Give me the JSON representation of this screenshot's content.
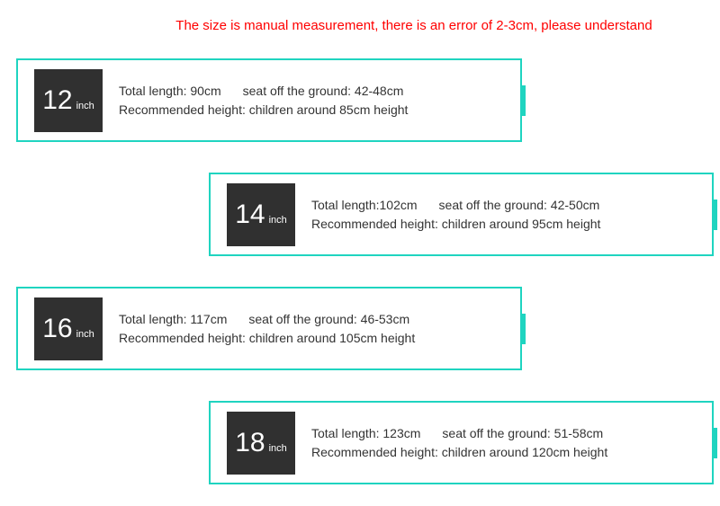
{
  "colors": {
    "disclaimer_text": "#ff0000",
    "card_border": "#1fd4c0",
    "accent_tab": "#1fd4c0",
    "badge_bg": "#303030",
    "badge_text": "#ffffff",
    "info_text": "#333333",
    "background": "#ffffff"
  },
  "disclaimer": "The size is manual measurement, there is an error of 2-3cm, please understand",
  "sizes": [
    {
      "number": "12",
      "unit": "inch",
      "align": "left",
      "total_length": "Total length: 90cm",
      "seat_off_ground": "seat off the ground: 42-48cm",
      "recommended_height": "Recommended height: children around 85cm height"
    },
    {
      "number": "14",
      "unit": "inch",
      "align": "right",
      "total_length": "Total length:102cm",
      "seat_off_ground": "seat off the ground: 42-50cm",
      "recommended_height": "Recommended height: children around 95cm height"
    },
    {
      "number": "16",
      "unit": "inch",
      "align": "left",
      "total_length": "Total length: 117cm",
      "seat_off_ground": "seat off the ground: 46-53cm",
      "recommended_height": "Recommended height: children around 105cm height"
    },
    {
      "number": "18",
      "unit": "inch",
      "align": "right",
      "total_length": "Total length: 123cm",
      "seat_off_ground": "seat off the ground: 51-58cm",
      "recommended_height": "Recommended height: children around 120cm height"
    }
  ]
}
